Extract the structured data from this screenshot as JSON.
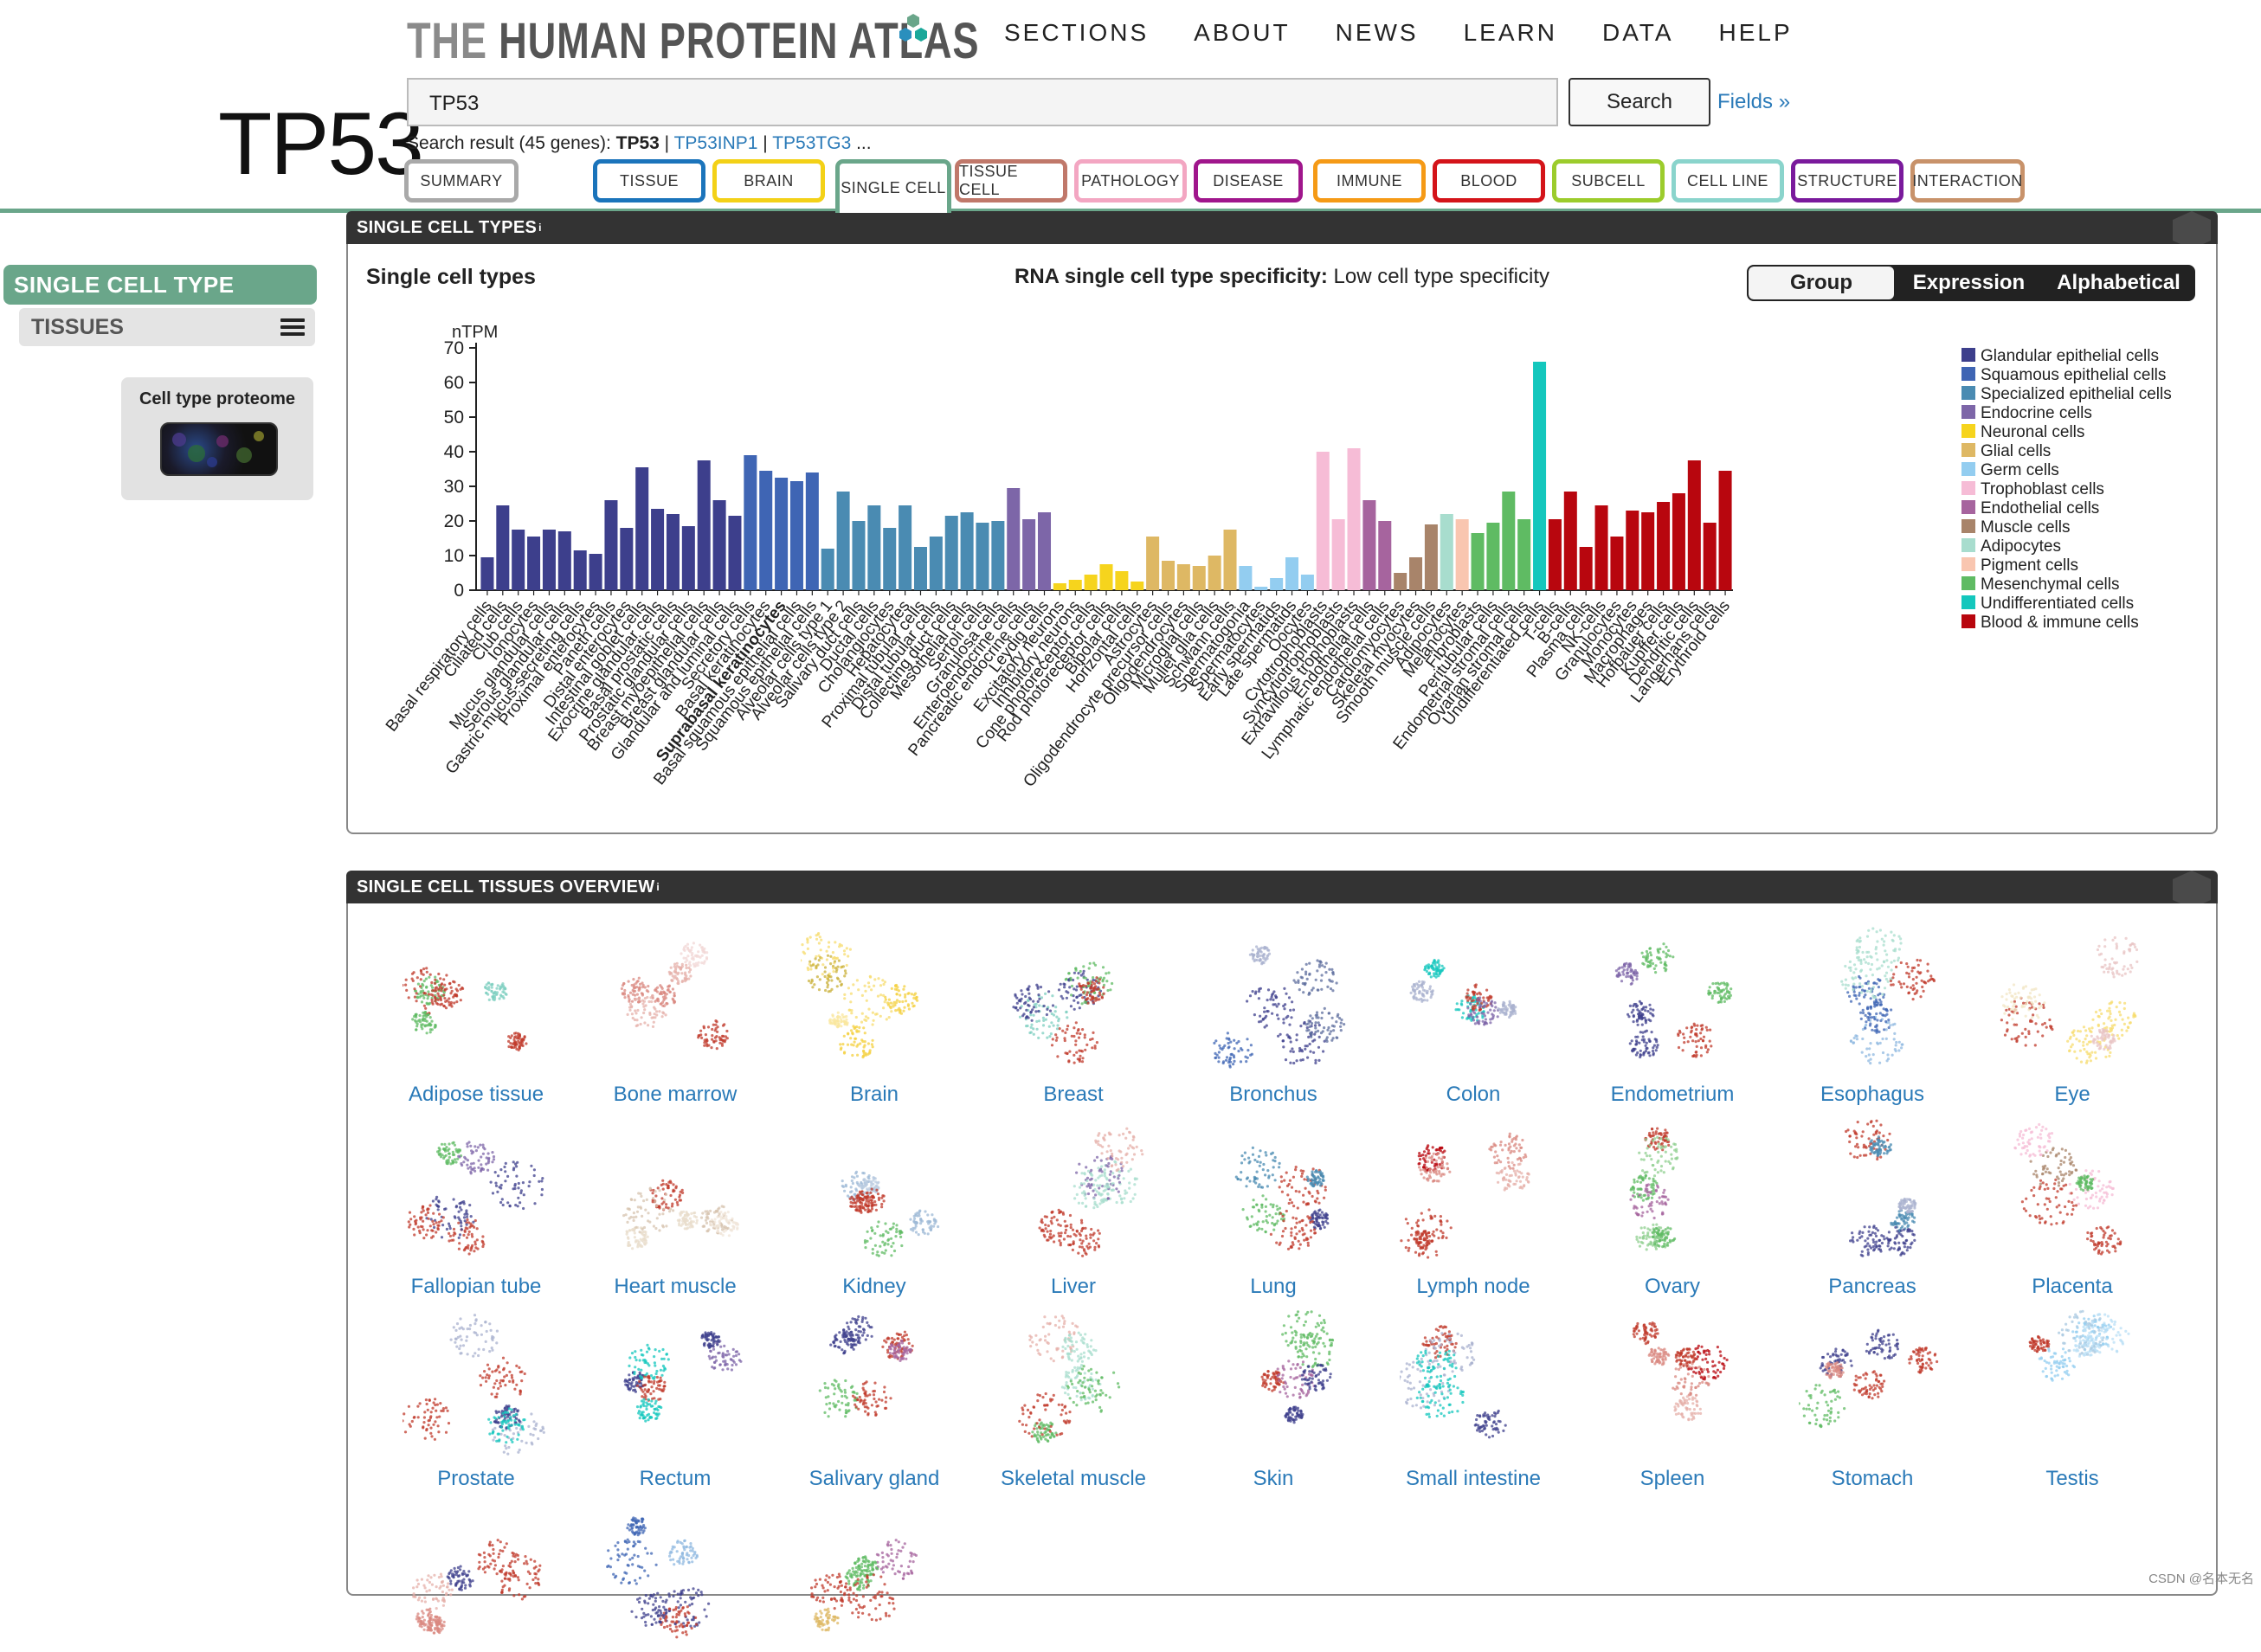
{
  "header": {
    "logo_the": "THE",
    "logo_rest": " HUMAN PROTEIN ATLAS",
    "nav": [
      "SECTIONS",
      "ABOUT",
      "NEWS",
      "LEARN",
      "DATA",
      "HELP"
    ],
    "gene_title": "TP53",
    "search_value": "TP53",
    "search_button": "Search",
    "fields_link": "Fields »",
    "search_result_prefix": "Search result (45 genes): ",
    "search_result_current": "TP53",
    "search_result_sep1": " | ",
    "search_result_link1": "TP53INP1",
    "search_result_sep2": " | ",
    "search_result_link2": "TP53TG3",
    "search_result_more": " ..."
  },
  "tabs": [
    {
      "label": "SUMMARY",
      "color": "#a9a9a9"
    },
    {
      "label": "TISSUE",
      "color": "#1b74bb"
    },
    {
      "label": "BRAIN",
      "color": "#f3d117"
    },
    {
      "label": "SINGLE CELL",
      "color": "#6aa68a"
    },
    {
      "label": "TISSUE CELL",
      "color": "#c0786a"
    },
    {
      "label": "PATHOLOGY",
      "color": "#f3a6c2"
    },
    {
      "label": "DISEASE",
      "color": "#a0168c"
    },
    {
      "label": "IMMUNE",
      "color": "#f59a16"
    },
    {
      "label": "BLOOD",
      "color": "#d4141a"
    },
    {
      "label": "SUBCELL",
      "color": "#9ccc2c"
    },
    {
      "label": "CELL LINE",
      "color": "#8ad4cc"
    },
    {
      "label": "STRUCTURE",
      "color": "#7a1a9c"
    },
    {
      "label": "INTERACTION",
      "color": "#c8926a"
    }
  ],
  "sidebar": {
    "heading": "SINGLE CELL TYPE",
    "sub": "TISSUES",
    "proteome_label": "Cell type proteome"
  },
  "panel1": {
    "title": "SINGLE CELL TYPES",
    "title_sup": "i",
    "left_title": "Single cell types",
    "center_title_bold": "RNA single cell type specificity:",
    "center_title_rest": " Low cell type specificity",
    "toggle": [
      "Group",
      "Expression",
      "Alphabetical"
    ],
    "toggle_active": "Group"
  },
  "chart_data": {
    "type": "bar",
    "ylabel": "nTPM",
    "ylim": [
      0,
      70
    ],
    "yticks": [
      0,
      10,
      20,
      30,
      40,
      50,
      60,
      70
    ],
    "highlight": "Suprabasal keratinocytes",
    "groups": [
      {
        "name": "Glandular epithelial cells",
        "color": "#3d3f8c"
      },
      {
        "name": "Squamous epithelial cells",
        "color": "#3f65b4"
      },
      {
        "name": "Specialized epithelial cells",
        "color": "#4a8bb2"
      },
      {
        "name": "Endocrine cells",
        "color": "#7d66a8"
      },
      {
        "name": "Neuronal cells",
        "color": "#f6d41d"
      },
      {
        "name": "Glial cells",
        "color": "#deb864"
      },
      {
        "name": "Germ cells",
        "color": "#93cdf0"
      },
      {
        "name": "Trophoblast cells",
        "color": "#f6bcd6"
      },
      {
        "name": "Endothelial cells",
        "color": "#a6649e"
      },
      {
        "name": "Muscle cells",
        "color": "#a8846a"
      },
      {
        "name": "Adipocytes",
        "color": "#a8ddce"
      },
      {
        "name": "Pigment cells",
        "color": "#f9c6b0"
      },
      {
        "name": "Mesenchymal cells",
        "color": "#5fbb63"
      },
      {
        "name": "Undifferentiated cells",
        "color": "#14c7bd"
      },
      {
        "name": "Blood & immune cells",
        "color": "#b8060e"
      }
    ],
    "bars": [
      {
        "label": "Basal respiratory cells",
        "g": 0,
        "v": 9.5
      },
      {
        "label": "Ciliated cells",
        "g": 0,
        "v": 24.5
      },
      {
        "label": "Club cells",
        "g": 0,
        "v": 17.5
      },
      {
        "label": "Ionocytes",
        "g": 0,
        "v": 15.5
      },
      {
        "label": "Mucus glandular cells",
        "g": 0,
        "v": 17.5
      },
      {
        "label": "Serous glandular cells",
        "g": 0,
        "v": 17
      },
      {
        "label": "Gastric mucus-secreting cells",
        "g": 0,
        "v": 11.5
      },
      {
        "label": "Proximal enterocytes",
        "g": 0,
        "v": 10.5
      },
      {
        "label": "Paneth cells",
        "g": 0,
        "v": 26
      },
      {
        "label": "Distal enterocytes",
        "g": 0,
        "v": 18
      },
      {
        "label": "Intestinal goblet cells",
        "g": 0,
        "v": 35.5
      },
      {
        "label": "Exocrine glandular cells",
        "g": 0,
        "v": 23.5
      },
      {
        "label": "Basal prostatic cells",
        "g": 0,
        "v": 22
      },
      {
        "label": "Prostatic glandular cells",
        "g": 0,
        "v": 18.5
      },
      {
        "label": "Breast myoepithelial cells",
        "g": 0,
        "v": 37.5
      },
      {
        "label": "Breast glandular cells",
        "g": 0,
        "v": 26
      },
      {
        "label": "Glandular and luminal cells",
        "g": 0,
        "v": 21.5
      },
      {
        "label": "Secretory cells",
        "g": 1,
        "v": 39
      },
      {
        "label": "Basal keratinocytes",
        "g": 1,
        "v": 34.5
      },
      {
        "label": "Suprabasal keratinocytes",
        "g": 1,
        "v": 32.5
      },
      {
        "label": "Basal squamous epithelial cells",
        "g": 1,
        "v": 31.5
      },
      {
        "label": "Squamous epithelial cells",
        "g": 1,
        "v": 34
      },
      {
        "label": "Alveolar cells type 1",
        "g": 2,
        "v": 12
      },
      {
        "label": "Alveolar cells type 2",
        "g": 2,
        "v": 28.5
      },
      {
        "label": "Salivary duct cells",
        "g": 2,
        "v": 20
      },
      {
        "label": "Ductal cells",
        "g": 2,
        "v": 24.5
      },
      {
        "label": "Cholangiocytes",
        "g": 2,
        "v": 18
      },
      {
        "label": "Hepatocytes",
        "g": 2,
        "v": 24.5
      },
      {
        "label": "Proximal tubular cells",
        "g": 2,
        "v": 12.5
      },
      {
        "label": "Distal tubular cells",
        "g": 2,
        "v": 15.5
      },
      {
        "label": "Collecting duct cells",
        "g": 2,
        "v": 21.5
      },
      {
        "label": "Mesothelial cells",
        "g": 2,
        "v": 22.5
      },
      {
        "label": "Sertoli cells",
        "g": 2,
        "v": 19.5
      },
      {
        "label": "Granulosa cells",
        "g": 2,
        "v": 20
      },
      {
        "label": "Enteroendocrine cells",
        "g": 3,
        "v": 29.5
      },
      {
        "label": "Pancreatic endocrine cells",
        "g": 3,
        "v": 20.5
      },
      {
        "label": "Leydig cells",
        "g": 3,
        "v": 22.5
      },
      {
        "label": "Excitatory neurons",
        "g": 4,
        "v": 2
      },
      {
        "label": "Inhibitory neurons",
        "g": 4,
        "v": 3
      },
      {
        "label": "Cone photoreceptor cells",
        "g": 4,
        "v": 4.5
      },
      {
        "label": "Rod photoreceptor cells",
        "g": 4,
        "v": 7.5
      },
      {
        "label": "Bipolar cells",
        "g": 4,
        "v": 5.5
      },
      {
        "label": "Horizontal cells",
        "g": 4,
        "v": 2.5
      },
      {
        "label": "Astrocytes",
        "g": 5,
        "v": 15.5
      },
      {
        "label": "Oligodendrocyte precursor cells",
        "g": 5,
        "v": 8.5
      },
      {
        "label": "Oligodendrocytes",
        "g": 5,
        "v": 7.5
      },
      {
        "label": "Microglial cells",
        "g": 5,
        "v": 7
      },
      {
        "label": "Muller glia cells",
        "g": 5,
        "v": 10
      },
      {
        "label": "Schwann cells",
        "g": 5,
        "v": 17.5
      },
      {
        "label": "Spermatogonia",
        "g": 6,
        "v": 7
      },
      {
        "label": "Spermatocytes",
        "g": 6,
        "v": 1
      },
      {
        "label": "Early spermatids",
        "g": 6,
        "v": 3.5
      },
      {
        "label": "Late spermatids",
        "g": 6,
        "v": 9.5
      },
      {
        "label": "Oocytes",
        "g": 6,
        "v": 4.5
      },
      {
        "label": "Cytotrophoblasts",
        "g": 7,
        "v": 40
      },
      {
        "label": "Syncytiotrophoblasts",
        "g": 7,
        "v": 20.5
      },
      {
        "label": "Extravillous trophoblasts",
        "g": 7,
        "v": 41
      },
      {
        "label": "Endothelial cells",
        "g": 8,
        "v": 26
      },
      {
        "label": "Lymphatic endothelial cells",
        "g": 8,
        "v": 20
      },
      {
        "label": "Cardiomyocytes",
        "g": 9,
        "v": 5
      },
      {
        "label": "Skeletal myocytes",
        "g": 9,
        "v": 9.5
      },
      {
        "label": "Smooth muscle cells",
        "g": 9,
        "v": 19
      },
      {
        "label": "Adipocytes",
        "g": 10,
        "v": 22
      },
      {
        "label": "Melanocytes",
        "g": 11,
        "v": 20.5
      },
      {
        "label": "Fibroblasts",
        "g": 12,
        "v": 16.5
      },
      {
        "label": "Peritubular cells",
        "g": 12,
        "v": 19.5
      },
      {
        "label": "Endometrial stromal cells",
        "g": 12,
        "v": 28.5
      },
      {
        "label": "Ovarian stromal cells",
        "g": 12,
        "v": 20.5
      },
      {
        "label": "Undifferentiated cells",
        "g": 13,
        "v": 66
      },
      {
        "label": "T-cells",
        "g": 14,
        "v": 20.5
      },
      {
        "label": "B-cells",
        "g": 14,
        "v": 28.5
      },
      {
        "label": "Plasma cells",
        "g": 14,
        "v": 12.5
      },
      {
        "label": "NK-cells",
        "g": 14,
        "v": 24.5
      },
      {
        "label": "Granulocytes",
        "g": 14,
        "v": 15.5
      },
      {
        "label": "Monocytes",
        "g": 14,
        "v": 23
      },
      {
        "label": "Macrophages",
        "g": 14,
        "v": 22.5
      },
      {
        "label": "Hofbauer cells",
        "g": 14,
        "v": 25.5
      },
      {
        "label": "Kupffer cells",
        "g": 14,
        "v": 28
      },
      {
        "label": "Dendritic cells",
        "g": 14,
        "v": 37.5
      },
      {
        "label": "Langerhans cells",
        "g": 14,
        "v": 19.5
      },
      {
        "label": "Erythroid cells",
        "g": 14,
        "v": 34.5
      }
    ]
  },
  "panel2": {
    "title": "SINGLE CELL TISSUES OVERVIEW",
    "title_sup": "i",
    "tissues": [
      {
        "name": "Adipose tissue",
        "colors": [
          "#c0392b",
          "#5fbb63",
          "#7ecfc0",
          "#c0392b"
        ]
      },
      {
        "name": "Bone marrow",
        "colors": [
          "#d98880",
          "#e6b0aa",
          "#c0392b",
          "#f2d7d5"
        ]
      },
      {
        "name": "Brain",
        "colors": [
          "#f4d03f",
          "#f7dc6f",
          "#c9b03a",
          "#f9e79f"
        ]
      },
      {
        "name": "Breast",
        "colors": [
          "#3d3f8c",
          "#c0392b",
          "#7ecfc0",
          "#5fbb63"
        ]
      },
      {
        "name": "Bronchus",
        "colors": [
          "#3d3f8c",
          "#5d6d9e",
          "#aab2cf",
          "#3f65b4"
        ]
      },
      {
        "name": "Colon",
        "colors": [
          "#aab2cf",
          "#14c7bd",
          "#c0392b",
          "#7d66a8"
        ]
      },
      {
        "name": "Endometrium",
        "colors": [
          "#3d3f8c",
          "#5fbb63",
          "#c0392b",
          "#7d66a8"
        ]
      },
      {
        "name": "Esophagus",
        "colors": [
          "#3f65b4",
          "#a8ddce",
          "#c0392b",
          "#8fb8e0"
        ]
      },
      {
        "name": "Eye",
        "colors": [
          "#f7dc6f",
          "#e8c4c4",
          "#c0392b",
          "#f2e6c4"
        ]
      },
      {
        "name": "Fallopian tube",
        "colors": [
          "#3d3f8c",
          "#c0392b",
          "#5fbb63",
          "#7d66a8"
        ]
      },
      {
        "name": "Heart muscle",
        "colors": [
          "#e8dccb",
          "#d7c4b0",
          "#c0392b",
          "#f0e6da"
        ]
      },
      {
        "name": "Kidney",
        "colors": [
          "#9cb8d6",
          "#c0392b",
          "#5fbb63",
          "#b9cbe0"
        ]
      },
      {
        "name": "Liver",
        "colors": [
          "#c0392b",
          "#a8ddce",
          "#7d66a8",
          "#e6b0aa"
        ]
      },
      {
        "name": "Lung",
        "colors": [
          "#c0392b",
          "#4a8bb2",
          "#3d3f8c",
          "#5fbb63"
        ]
      },
      {
        "name": "Lymph node",
        "colors": [
          "#c0392b",
          "#d98880",
          "#b8060e",
          "#e6b0aa"
        ]
      },
      {
        "name": "Ovary",
        "colors": [
          "#5fbb63",
          "#8fcf8f",
          "#a6649e",
          "#c0392b"
        ]
      },
      {
        "name": "Pancreas",
        "colors": [
          "#3d3f8c",
          "#4a8bb2",
          "#c0392b",
          "#aab2cf"
        ]
      },
      {
        "name": "Placenta",
        "colors": [
          "#f6bcd6",
          "#c0392b",
          "#5fbb63",
          "#a8846a"
        ]
      },
      {
        "name": "Prostate",
        "colors": [
          "#aab2cf",
          "#c0392b",
          "#3d3f8c",
          "#14c7bd"
        ]
      },
      {
        "name": "Rectum",
        "colors": [
          "#3d3f8c",
          "#14c7bd",
          "#7d66a8",
          "#c0392b"
        ]
      },
      {
        "name": "Salivary gland",
        "colors": [
          "#3d3f8c",
          "#c0392b",
          "#5fbb63",
          "#a6649e"
        ]
      },
      {
        "name": "Skeletal muscle",
        "colors": [
          "#a8ddce",
          "#5fbb63",
          "#e6b0aa",
          "#c0392b"
        ]
      },
      {
        "name": "Skin",
        "colors": [
          "#5fbb63",
          "#3d3f8c",
          "#c0392b",
          "#a6649e"
        ]
      },
      {
        "name": "Small intestine",
        "colors": [
          "#aab2cf",
          "#14c7bd",
          "#3d3f8c",
          "#c0392b"
        ]
      },
      {
        "name": "Spleen",
        "colors": [
          "#c0392b",
          "#d98880",
          "#b8060e",
          "#e6b0aa"
        ]
      },
      {
        "name": "Stomach",
        "colors": [
          "#c0392b",
          "#3d3f8c",
          "#5fbb63",
          "#d98880"
        ]
      },
      {
        "name": "Testis",
        "colors": [
          "#93cdf0",
          "#b9dff5",
          "#c0392b",
          "#a8c8e0"
        ]
      },
      {
        "name": "",
        "colors": [
          "#c0392b",
          "#d98880",
          "#3d3f8c",
          "#e6b0aa"
        ]
      },
      {
        "name": "",
        "colors": [
          "#3f65b4",
          "#3d3f8c",
          "#c0392b",
          "#8fb8e0"
        ]
      },
      {
        "name": "",
        "colors": [
          "#5fbb63",
          "#c0392b",
          "#a6649e",
          "#deb864"
        ]
      }
    ]
  },
  "footer": {
    "watermark": "CSDN @名本无名"
  }
}
